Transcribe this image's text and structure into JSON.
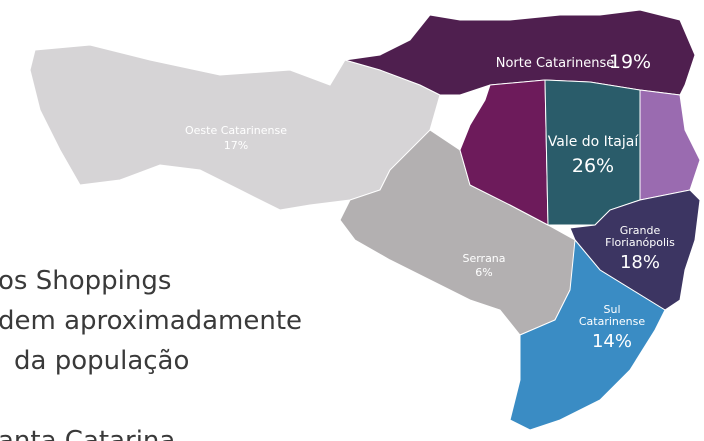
{
  "regions": [
    {
      "name": "Norte Catarinense",
      "share": "19%"
    },
    {
      "name": "Vale do Itajaí",
      "share": "26%"
    },
    {
      "name_lines": [
        "Grande",
        "Florianópolis"
      ],
      "share": "18%"
    },
    {
      "name_lines": [
        "Sul",
        "Catarinense"
      ],
      "share": "14%"
    },
    {
      "name": "Serrana",
      "share": "6%"
    },
    {
      "name": "Oeste Catarinense",
      "share": "17%"
    }
  ],
  "caption": {
    "lines": [
      "os Shoppings",
      "dem aproximadamente",
      "da população",
      "anta Catarina"
    ]
  }
}
